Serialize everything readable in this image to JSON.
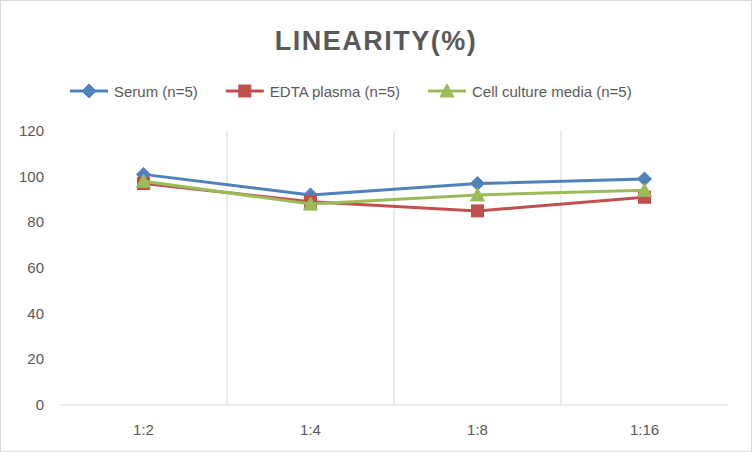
{
  "chart_data": {
    "type": "line",
    "title": "LINEARITY(%)",
    "categories": [
      "1:2",
      "1:4",
      "1:8",
      "1:16"
    ],
    "series": [
      {
        "name": "Serum (n=5)",
        "color": "#4f81bd",
        "marker": "diamond",
        "values": [
          101,
          92,
          97,
          99
        ]
      },
      {
        "name": "EDTA plasma (n=5)",
        "color": "#c0504d",
        "marker": "square",
        "values": [
          97,
          89,
          85,
          91
        ]
      },
      {
        "name": "Cell culture media (n=5)",
        "color": "#9bbb59",
        "marker": "triangle",
        "values": [
          98,
          88,
          92,
          94
        ]
      }
    ],
    "ylim": [
      0,
      120
    ],
    "yticks": [
      0,
      20,
      40,
      60,
      80,
      100,
      120
    ],
    "grid": true,
    "legend": "top"
  }
}
